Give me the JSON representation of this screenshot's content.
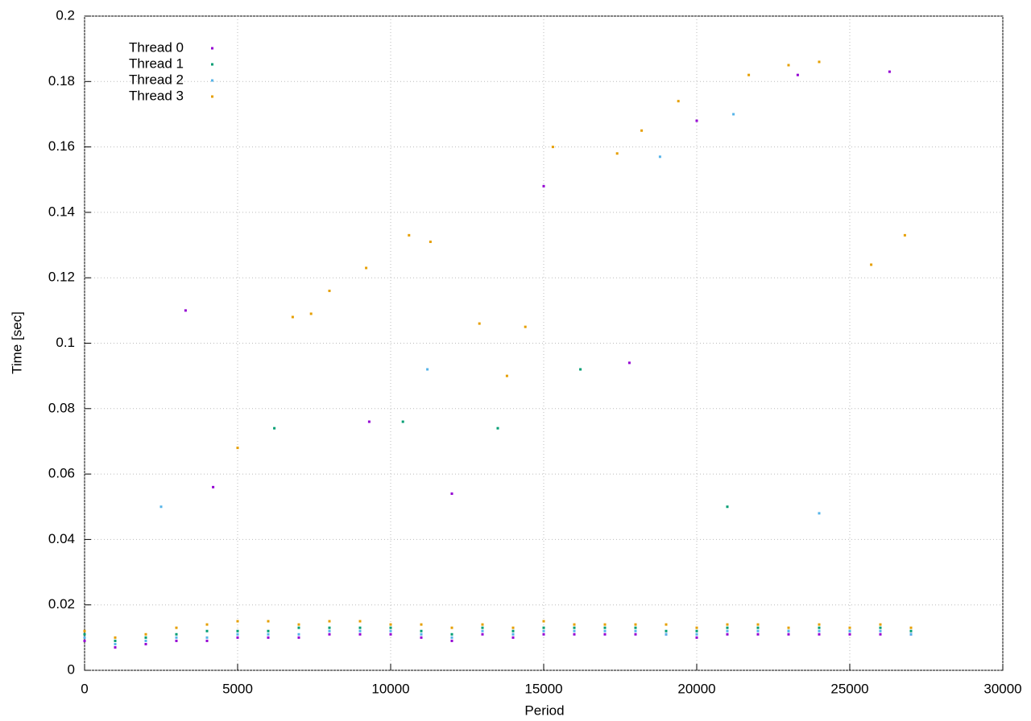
{
  "chart_data": {
    "type": "scatter",
    "xlabel": "Period",
    "ylabel": "Time [sec]",
    "xlim": [
      0,
      30000
    ],
    "xticks": [
      0,
      5000,
      10000,
      15000,
      20000,
      25000,
      30000
    ],
    "ylim": [
      0,
      0.2
    ],
    "yticks": [
      0,
      0.02,
      0.04,
      0.06,
      0.08,
      0.1,
      0.12,
      0.14,
      0.16,
      0.18,
      0.2
    ],
    "grid": true,
    "legend": "upper left",
    "series": [
      {
        "name": "Thread 0",
        "color": "#9400d3",
        "x": [
          0,
          1000,
          2000,
          3000,
          4000,
          5000,
          6000,
          7000,
          8000,
          9000,
          10000,
          11000,
          12000,
          13000,
          14000,
          15000,
          16000,
          17000,
          18000,
          19000,
          20000,
          21000,
          22000,
          23000,
          24000,
          25000,
          26000,
          27000,
          4200,
          9300,
          20000,
          23300,
          26300,
          12000,
          17800,
          15000,
          3300
        ],
        "values": [
          0.009,
          0.007,
          0.008,
          0.009,
          0.009,
          0.01,
          0.01,
          0.01,
          0.011,
          0.011,
          0.011,
          0.01,
          0.009,
          0.011,
          0.01,
          0.011,
          0.011,
          0.011,
          0.011,
          0.011,
          0.01,
          0.011,
          0.011,
          0.011,
          0.011,
          0.011,
          0.011,
          0.011,
          0.056,
          0.076,
          0.168,
          0.182,
          0.183,
          0.054,
          0.094,
          0.148,
          0.11
        ]
      },
      {
        "name": "Thread 1",
        "color": "#009e73",
        "x": [
          0,
          1000,
          2000,
          3000,
          4000,
          5000,
          6000,
          7000,
          8000,
          9000,
          10000,
          11000,
          12000,
          13000,
          14000,
          15000,
          16000,
          17000,
          18000,
          19000,
          20000,
          21000,
          22000,
          23000,
          24000,
          25000,
          26000,
          27000,
          6200,
          10400,
          13500,
          21000,
          16200
        ],
        "values": [
          0.011,
          0.009,
          0.01,
          0.011,
          0.012,
          0.012,
          0.012,
          0.013,
          0.013,
          0.013,
          0.013,
          0.012,
          0.011,
          0.013,
          0.012,
          0.013,
          0.013,
          0.013,
          0.013,
          0.012,
          0.012,
          0.013,
          0.013,
          0.012,
          0.013,
          0.012,
          0.013,
          0.012,
          0.074,
          0.076,
          0.074,
          0.05,
          0.092
        ]
      },
      {
        "name": "Thread 2",
        "color": "#56b4e9",
        "x": [
          0,
          1000,
          2000,
          3000,
          4000,
          5000,
          6000,
          7000,
          8000,
          9000,
          10000,
          11000,
          12000,
          13000,
          14000,
          15000,
          16000,
          17000,
          18000,
          19000,
          20000,
          21000,
          22000,
          23000,
          24000,
          25000,
          26000,
          27000,
          2500,
          11200,
          18800,
          24000,
          21200
        ],
        "values": [
          0.01,
          0.008,
          0.009,
          0.01,
          0.01,
          0.011,
          0.011,
          0.011,
          0.012,
          0.012,
          0.012,
          0.011,
          0.01,
          0.012,
          0.011,
          0.012,
          0.012,
          0.012,
          0.012,
          0.011,
          0.011,
          0.012,
          0.012,
          0.012,
          0.012,
          0.012,
          0.012,
          0.011,
          0.05,
          0.092,
          0.157,
          0.048,
          0.17
        ]
      },
      {
        "name": "Thread 3",
        "color": "#e69f00",
        "x": [
          0,
          1000,
          2000,
          3000,
          4000,
          5000,
          6000,
          7000,
          8000,
          9000,
          10000,
          11000,
          12000,
          13000,
          14000,
          15000,
          16000,
          17000,
          18000,
          19000,
          20000,
          21000,
          22000,
          23000,
          24000,
          25000,
          26000,
          27000,
          5000,
          6800,
          7400,
          8000,
          9200,
          10600,
          11300,
          12900,
          13800,
          15300,
          17400,
          18200,
          19400,
          21700,
          23000,
          24000,
          25700,
          26800,
          14400
        ],
        "values": [
          0.012,
          0.01,
          0.011,
          0.013,
          0.014,
          0.015,
          0.015,
          0.014,
          0.015,
          0.015,
          0.014,
          0.014,
          0.013,
          0.014,
          0.013,
          0.015,
          0.014,
          0.014,
          0.014,
          0.014,
          0.013,
          0.014,
          0.014,
          0.013,
          0.014,
          0.013,
          0.014,
          0.013,
          0.068,
          0.108,
          0.109,
          0.116,
          0.123,
          0.133,
          0.131,
          0.106,
          0.09,
          0.16,
          0.158,
          0.165,
          0.174,
          0.182,
          0.185,
          0.186,
          0.124,
          0.133,
          0.105
        ]
      }
    ]
  }
}
